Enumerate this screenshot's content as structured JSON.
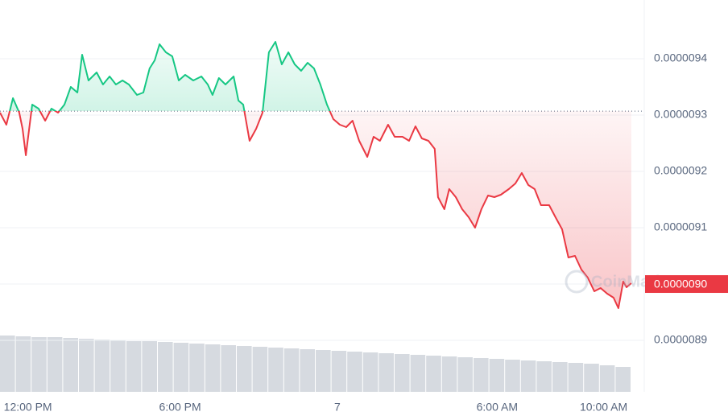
{
  "chart_data": {
    "type": "line",
    "x": [
      0.0,
      0.25,
      0.51,
      0.76,
      0.89,
      1.02,
      1.27,
      1.52,
      1.78,
      2.03,
      2.29,
      2.54,
      2.79,
      3.05,
      3.24,
      3.49,
      3.81,
      4.06,
      4.32,
      4.57,
      4.83,
      5.08,
      5.4,
      5.65,
      5.9,
      6.1,
      6.29,
      6.54,
      6.79,
      7.05,
      7.3,
      7.62,
      7.94,
      8.19,
      8.38,
      8.63,
      8.89,
      9.21,
      9.4,
      9.59,
      9.84,
      10.1,
      10.35,
      10.6,
      10.86,
      11.11,
      11.37,
      11.62,
      11.87,
      12.13,
      12.38,
      12.63,
      12.89,
      13.14,
      13.4,
      13.65,
      13.9,
      14.16,
      14.48,
      14.73,
      14.98,
      15.3,
      15.56,
      15.87,
      16.13,
      16.38,
      16.63,
      16.89,
      17.14,
      17.27,
      17.52,
      17.71,
      17.97,
      18.22,
      18.48,
      18.73,
      18.98,
      19.24,
      19.49,
      19.75,
      20.06,
      20.32,
      20.57,
      20.83,
      21.08,
      21.33,
      21.65,
      21.9,
      22.16,
      22.41,
      22.67,
      22.92,
      23.17,
      23.43,
      23.68,
      23.94,
      24.19,
      24.38,
      24.57,
      24.7,
      24.89
    ],
    "series": [
      {
        "values": [
          9.3043e-06,
          9.2829e-06,
          9.33e-06,
          9.3043e-06,
          9.2757e-06,
          9.2286e-06,
          9.3186e-06,
          9.3114e-06,
          9.29e-06,
          9.3114e-06,
          9.3043e-06,
          9.3186e-06,
          9.35e-06,
          9.34e-06,
          9.4071e-06,
          9.3614e-06,
          9.3757e-06,
          9.3543e-06,
          9.3686e-06,
          9.3543e-06,
          9.3614e-06,
          9.3543e-06,
          9.3357e-06,
          9.34e-06,
          9.3829e-06,
          9.3971e-06,
          9.4257e-06,
          9.4114e-06,
          9.4043e-06,
          9.3614e-06,
          9.3714e-06,
          9.3614e-06,
          9.3686e-06,
          9.3543e-06,
          9.3357e-06,
          9.3657e-06,
          9.3543e-06,
          9.3686e-06,
          9.3257e-06,
          9.3186e-06,
          9.2543e-06,
          9.2757e-06,
          9.3043e-06,
          9.4114e-06,
          9.43e-06,
          9.39e-06,
          9.4114e-06,
          9.39e-06,
          9.3786e-06,
          9.3929e-06,
          9.3829e-06,
          9.3543e-06,
          9.3186e-06,
          9.2929e-06,
          9.2829e-06,
          9.2786e-06,
          9.29e-06,
          9.2543e-06,
          9.2257e-06,
          9.2614e-06,
          9.2543e-06,
          9.2829e-06,
          9.2614e-06,
          9.2614e-06,
          9.2543e-06,
          9.28e-06,
          9.2586e-06,
          9.2543e-06,
          9.24e-06,
          9.1543e-06,
          9.1329e-06,
          9.1686e-06,
          9.1543e-06,
          9.1329e-06,
          9.1186e-06,
          9.1e-06,
          9.1329e-06,
          9.1571e-06,
          9.1543e-06,
          9.1586e-06,
          9.1686e-06,
          9.1786e-06,
          9.1971e-06,
          9.1757e-06,
          9.1686e-06,
          9.14e-06,
          9.14e-06,
          9.1186e-06,
          9.0971e-06,
          9.0471e-06,
          9.05e-06,
          9.0257e-06,
          9.0114e-06,
          8.9871e-06,
          8.9929e-06,
          8.9829e-06,
          8.9757e-06,
          8.9571e-06,
          9.0043e-06,
          8.9943e-06,
          9.0014e-06
        ]
      }
    ],
    "up_color": "#16c784",
    "down_color": "#ea3943",
    "baseline": 9.307e-06,
    "xlim": [
      0,
      25.4
    ],
    "xticks": [
      {
        "value": 1.1,
        "label": "12:00 PM"
      },
      {
        "value": 7.1,
        "label": "6:00 PM"
      },
      {
        "value": 13.3,
        "label": "7"
      },
      {
        "value": 19.6,
        "label": "6:00 AM"
      },
      {
        "value": 23.8,
        "label": "10:00 AM"
      }
    ],
    "ylim": [
      8.8086e-06,
      9.5043e-06
    ],
    "yticks": [
      8.9e-06,
      9e-06,
      9.1e-06,
      9.2e-06,
      9.3e-06,
      9.4e-06
    ],
    "current_price": {
      "value": 9e-06,
      "label": "0.0000090"
    },
    "volume": {
      "values": [
        70,
        69,
        68,
        68,
        67,
        66,
        65,
        64,
        63,
        63,
        62,
        61,
        60,
        59,
        58,
        57,
        56,
        55,
        54,
        53,
        52,
        51,
        50,
        49,
        48,
        47,
        46,
        45,
        44,
        43,
        42,
        41,
        40,
        39,
        38,
        37,
        36,
        35,
        33,
        31
      ],
      "lim": [
        0,
        100
      ],
      "color": "#d6dae0"
    },
    "watermark": "CoinMarketCap",
    "grid": true
  }
}
